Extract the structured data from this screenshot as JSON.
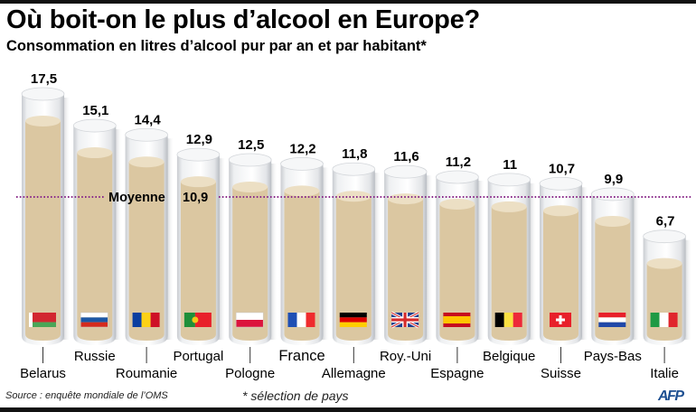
{
  "header": {
    "title": "Où boit-on le plus d’alcool en Europe?",
    "subtitle": "Consommation en litres d’alcool pur par an et par habitant*"
  },
  "footer": {
    "source": "Source : enquête mondiale de l’OMS",
    "note": "* sélection de pays",
    "logo": "AFP"
  },
  "colors": {
    "liquid": "#dbc7a1",
    "liquid_top": "#ecdfc4",
    "glass": "#e4e6e9",
    "average_line": "#8a2a8a"
  },
  "chart_data": {
    "type": "bar",
    "title": "Où boit-on le plus d’alcool en Europe?",
    "subtitle": "Consommation en litres d’alcool pur par an et par habitant*",
    "unit": "litres d’alcool pur par an et par habitant",
    "categories": [
      "Belarus",
      "Russie",
      "Roumanie",
      "Portugal",
      "Pologne",
      "France",
      "Allemagne",
      "Roy.-Uni",
      "Espagne",
      "Belgique",
      "Suisse",
      "Pays-Bas",
      "Italie"
    ],
    "values": [
      17.5,
      15.1,
      14.4,
      12.9,
      12.5,
      12.2,
      11.8,
      11.6,
      11.2,
      11,
      10.7,
      9.9,
      6.7
    ],
    "value_labels": [
      "17,5",
      "15,1",
      "14,4",
      "12,9",
      "12,5",
      "12,2",
      "11,8",
      "11,6",
      "11,2",
      "11",
      "10,7",
      "9,9",
      "6,7"
    ],
    "flags": [
      "flag-belarus",
      "flag-russia",
      "flag-romania",
      "flag-portugal",
      "flag-poland",
      "flag-france",
      "flag-germany",
      "flag-uk",
      "flag-spain",
      "flag-belgium",
      "flag-switzerland",
      "flag-netherlands",
      "flag-italy"
    ],
    "average": {
      "label": "Moyenne",
      "value": 10.9,
      "value_label": "10,9"
    },
    "grid": false,
    "legend": "none"
  }
}
